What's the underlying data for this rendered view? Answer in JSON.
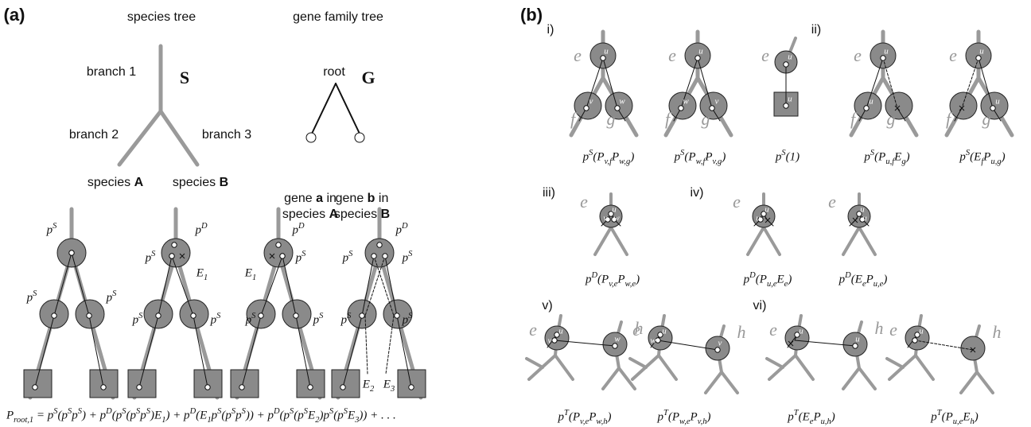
{
  "panel_a": {
    "label": "(a)",
    "species_tree_title": "species tree",
    "gene_tree_title": "gene family tree",
    "branch_labels": [
      "branch 1",
      "branch 2",
      "branch 3"
    ],
    "species_tree_symbol": "S",
    "gene_tree_symbol": "G",
    "root_label": "root",
    "species_labels": [
      [
        "species",
        "A"
      ],
      [
        "species",
        "B"
      ]
    ],
    "gene_labels": [
      [
        [
          "gene",
          "a",
          "in"
        ],
        [
          "species",
          "A"
        ]
      ],
      [
        [
          "gene",
          "b",
          "in"
        ],
        [
          "species",
          "B"
        ]
      ]
    ],
    "reconciliations": [
      [
        "p^S",
        "p^S",
        "p^S"
      ],
      [
        "p^D",
        "p^S",
        "E_1",
        "p^S",
        "p^S"
      ],
      [
        "p^D",
        "E_1",
        "p^S",
        "p^S",
        "p^S"
      ],
      [
        "p^D",
        "p^S",
        "p^S",
        "p^S",
        "p^S",
        "E_2",
        "E_3"
      ]
    ],
    "equation": "P_{root,1} = p^S(p^Sp^S) + p^D(p^S(p^Sp^S)E_1) + p^D(E_1p^S(p^Sp^S)) + p^D(p^S(p^SE_2)p^S(p^SE_3)) + . . ."
  },
  "panel_b": {
    "label": "(b)",
    "groups": [
      {
        "label": "i)",
        "items": [
          {
            "caption": "p^S(P_{v,f}P_{w,g})",
            "branch_labels": [
              "e",
              "f",
              "g"
            ],
            "gene_labels": [
              "u",
              "v",
              "w"
            ]
          },
          {
            "caption": "p^S(P_{w,f}P_{v,g})",
            "branch_labels": [
              "e",
              "f",
              "g"
            ],
            "gene_labels": [
              "u",
              "w",
              "v"
            ]
          },
          {
            "caption": "p^S(1)",
            "branch_labels": [
              "e"
            ],
            "gene_labels": [
              "u",
              "u"
            ]
          }
        ]
      },
      {
        "label": "ii)",
        "items": [
          {
            "caption": "p^S(P_{u,f}E_g)",
            "branch_labels": [
              "e",
              "f",
              "g"
            ],
            "gene_labels": [
              "u",
              "u"
            ]
          },
          {
            "caption": "p^S(E_fP_{u,g})",
            "branch_labels": [
              "e",
              "f",
              "g"
            ],
            "gene_labels": [
              "u",
              "u"
            ]
          }
        ]
      },
      {
        "label": "iii)",
        "items": [
          {
            "caption": "p^D(P_{v,e}P_{w,e})",
            "branch_labels": [
              "e"
            ],
            "gene_labels": [
              "u",
              "v",
              "w"
            ]
          }
        ]
      },
      {
        "label": "iv)",
        "items": [
          {
            "caption": "p^D(P_{u,e}E_e)",
            "branch_labels": [
              "e"
            ],
            "gene_labels": [
              "u",
              "u"
            ]
          },
          {
            "caption": "p^D(E_eP_{u,e})",
            "branch_labels": [
              "e"
            ],
            "gene_labels": [
              "u",
              "u"
            ]
          }
        ]
      },
      {
        "label": "v)",
        "items": [
          {
            "caption": "p^T(P_{v,e}P_{w,h})",
            "branch_labels": [
              "e",
              "h"
            ],
            "gene_labels": [
              "u",
              "v",
              "w"
            ]
          },
          {
            "caption": "p^T(P_{w,e}P_{v,h})",
            "branch_labels": [
              "e",
              "h"
            ],
            "gene_labels": [
              "u",
              "w",
              "v"
            ]
          }
        ]
      },
      {
        "label": "vi)",
        "items": [
          {
            "caption": "p^T(E_eP_{u,h})",
            "branch_labels": [
              "e",
              "h"
            ],
            "gene_labels": [
              "u",
              "u"
            ]
          },
          {
            "caption": "p^T(P_{u,e}E_h)",
            "branch_labels": [
              "e",
              "h"
            ],
            "gene_labels": [
              "u"
            ]
          }
        ]
      }
    ]
  }
}
